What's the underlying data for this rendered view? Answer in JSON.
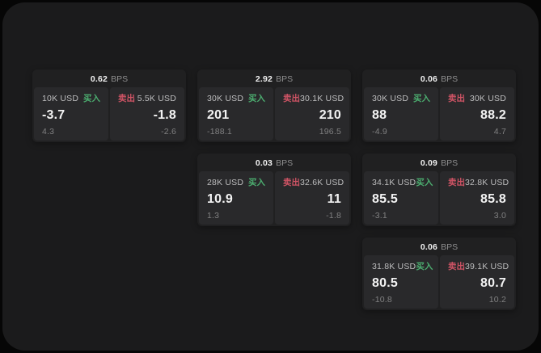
{
  "labels": {
    "buy": "买入",
    "sell": "卖出",
    "bps_unit": "BPS"
  },
  "colors": {
    "buy_green": "#4cae70",
    "sell_red": "#cf5465",
    "window_bg": "#1b1b1c",
    "card_bg": "#202021",
    "panel_bg": "#29292b"
  },
  "cards": [
    {
      "bps": "0.62",
      "buy": {
        "amount": "10K USD",
        "price": "-3.7",
        "delta": "4.3"
      },
      "sell": {
        "amount": "5.5K USD",
        "price": "-1.8",
        "delta": "-2.6"
      }
    },
    {
      "bps": "2.92",
      "buy": {
        "amount": "30K USD",
        "price": "201",
        "delta": "-188.1"
      },
      "sell": {
        "amount": "30.1K USD",
        "price": "210",
        "delta": "196.5"
      }
    },
    {
      "bps": "0.06",
      "buy": {
        "amount": "30K USD",
        "price": "88",
        "delta": "-4.9"
      },
      "sell": {
        "amount": "30K USD",
        "price": "88.2",
        "delta": "4.7"
      }
    },
    {
      "bps": "0.03",
      "buy": {
        "amount": "28K USD",
        "price": "10.9",
        "delta": "1.3"
      },
      "sell": {
        "amount": "32.6K USD",
        "price": "11",
        "delta": "-1.8"
      }
    },
    {
      "bps": "0.09",
      "buy": {
        "amount": "34.1K USD",
        "price": "85.5",
        "delta": "-3.1"
      },
      "sell": {
        "amount": "32.8K USD",
        "price": "85.8",
        "delta": "3.0"
      }
    },
    {
      "bps": "0.06",
      "buy": {
        "amount": "31.8K USD",
        "price": "80.5",
        "delta": "-10.8"
      },
      "sell": {
        "amount": "39.1K USD",
        "price": "80.7",
        "delta": "10.2"
      }
    }
  ]
}
